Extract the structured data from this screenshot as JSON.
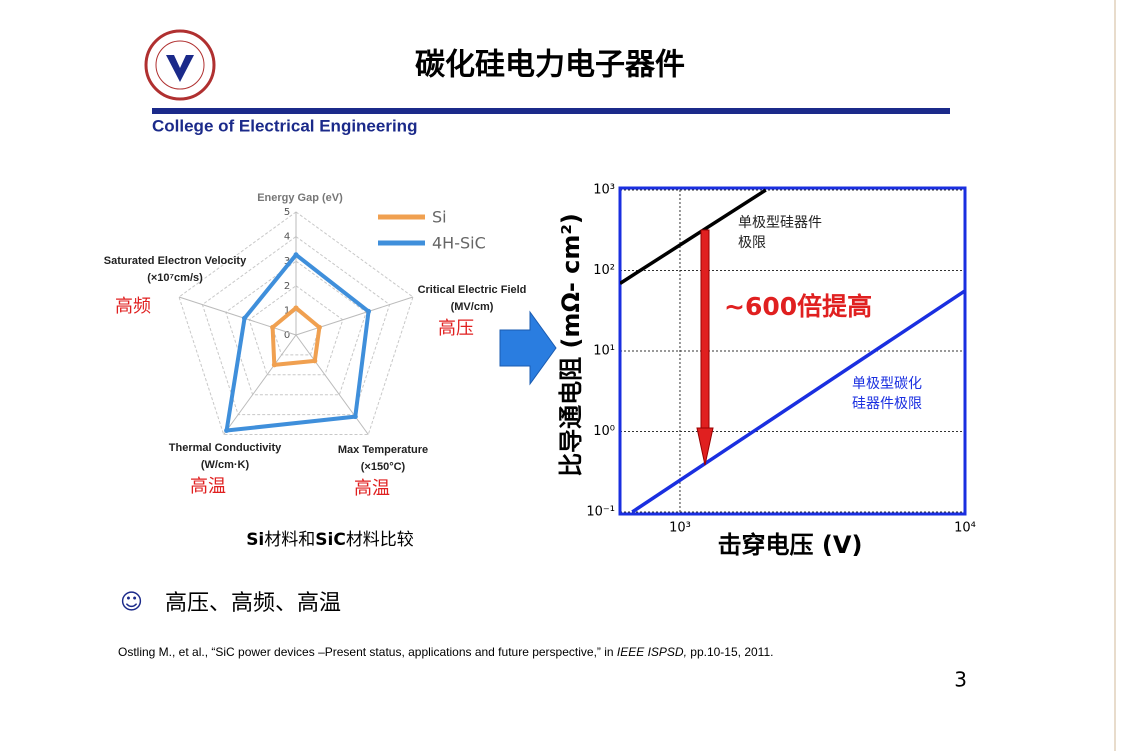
{
  "header": {
    "title": "碳化硅电力电子器件",
    "college": "College of Electrical Engineering"
  },
  "chart_data": [
    {
      "type": "radar",
      "axes": [
        "Energy Gap (eV)",
        "Critical Electric Field (MV/cm)",
        "Max Temperature (×150°C)",
        "Thermal Conductivity (W/cm·K)",
        "Saturated Electron Velocity (×10⁷cm/s)"
      ],
      "rlim": [
        0,
        5
      ],
      "rticks": [
        0,
        1,
        2,
        3,
        4,
        5
      ],
      "series": [
        {
          "name": "Si",
          "color": "#f0a050",
          "values": [
            1.1,
            1,
            1.3,
            1.5,
            1
          ]
        },
        {
          "name": "4H-SiC",
          "color": "#3f8fdb",
          "values": [
            3.26,
            3.1,
            4.1,
            4.8,
            2.2
          ]
        }
      ],
      "annotations": [
        "高频",
        "高压",
        "高温",
        "高温"
      ],
      "caption": [
        "Si",
        "材料和",
        "SiC",
        "材料比较"
      ]
    },
    {
      "type": "line",
      "xscale": "log",
      "yscale": "log",
      "grid": true,
      "xlabel": "击穿电压 (V)",
      "ylabel": "比导通电阻 (mΩ- cm²)",
      "xlim": [
        616,
        10000
      ],
      "ylim": [
        0.1,
        1000
      ],
      "xticks": [
        {
          "value": 1000,
          "label": "10³"
        },
        {
          "value": 10000,
          "label": "10⁴"
        }
      ],
      "yticks": [
        {
          "value": 0.1,
          "label": "10⁻¹"
        },
        {
          "value": 1,
          "label": "10⁰"
        },
        {
          "value": 10,
          "label": "10¹"
        },
        {
          "value": 100,
          "label": "10²"
        },
        {
          "value": 1000,
          "label": "10³"
        }
      ],
      "series": [
        {
          "name": "单极型硅器件极限",
          "color": "#000000",
          "x": [
            616,
            2000
          ],
          "values": [
            69,
            1000
          ]
        },
        {
          "name": "单极型碳化硅器件极限",
          "color": "#1a2fe0",
          "x": [
            680,
            10000
          ],
          "values": [
            0.1,
            56
          ]
        }
      ],
      "annotations": [
        "~600倍提高"
      ]
    }
  ],
  "bullet": "高压、高频、高温",
  "reference": [
    "Ostling M., et al., “SiC power devices –Present status, applications and future perspective,” in ",
    "IEEE ISPSD,",
    " pp.10-15, 2011."
  ],
  "page_number": "3"
}
